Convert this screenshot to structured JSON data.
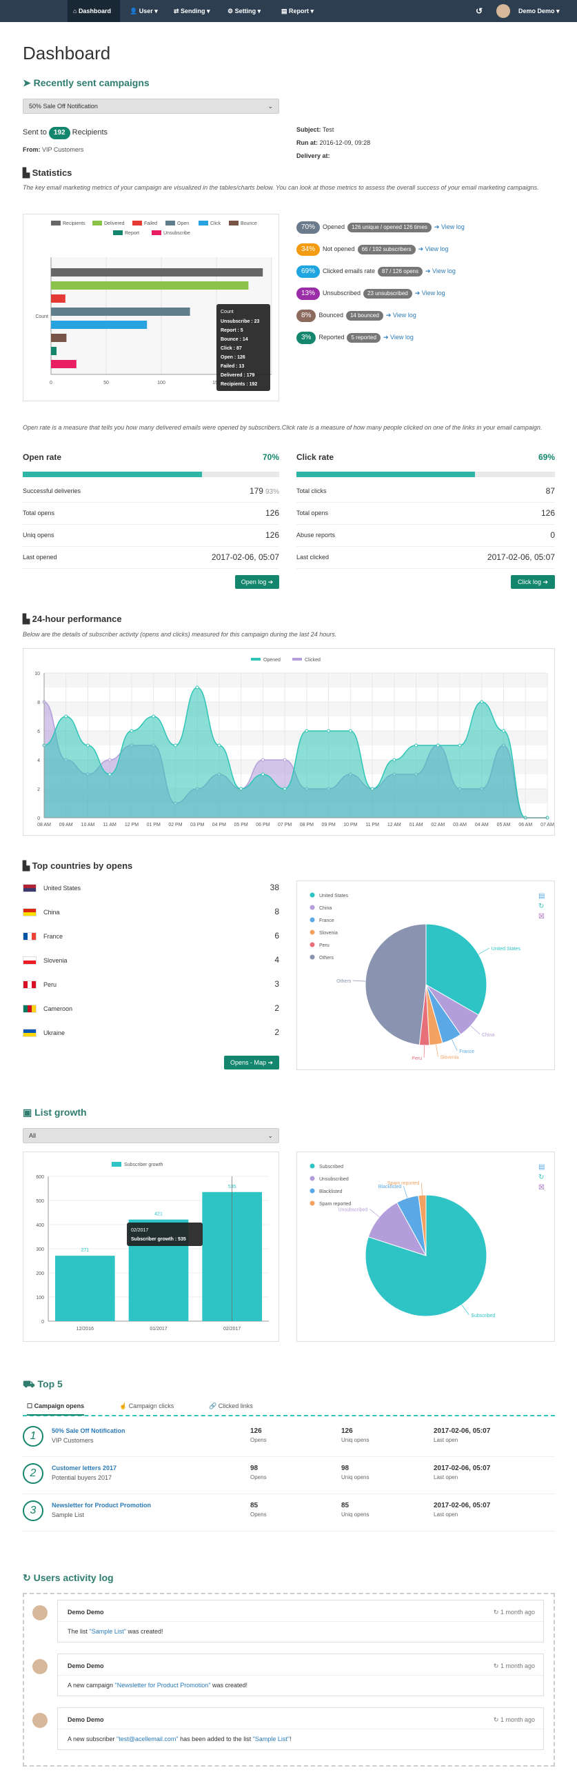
{
  "nav": {
    "items": [
      "Dashboard",
      "User",
      "Sending",
      "Setting",
      "Report"
    ],
    "user": "Demo Demo"
  },
  "page_title": "Dashboard",
  "recent": {
    "title": "Recently sent campaigns",
    "selected": "50% Sale Off Notification",
    "sent_to_prefix": "Sent to",
    "recipients_count": "192",
    "recipients_label": "Recipients",
    "from_label": "From:",
    "from_value": "VIP Customers",
    "subject_label": "Subject:",
    "subject_value": "Test",
    "run_at_label": "Run at:",
    "run_at_value": "2016-12-09, 09:28",
    "delivery_at_label": "Delivery at:"
  },
  "statistics": {
    "title": "Statistics",
    "desc": "The key email marketing metrics of your campaign are visualized in the tables/charts below. You can look at those metrics to assess the overall success of your email marketing campaigns."
  },
  "metrics": [
    {
      "pct": "70%",
      "label": "Opened",
      "badge": "126 unique / opened 126 times",
      "color": "#6b7b8c",
      "link": "View log"
    },
    {
      "pct": "34%",
      "label": "Not opened",
      "badge": "66 / 192 subscribers",
      "color": "#f39c12",
      "link": "View log"
    },
    {
      "pct": "69%",
      "label": "Clicked emails rate",
      "badge": "87 / 126 opens",
      "color": "#1fa6e0",
      "link": "View log"
    },
    {
      "pct": "13%",
      "label": "Unsubscribed",
      "badge": "23 unsubscribed",
      "color": "#9b2ea8",
      "link": "View log"
    },
    {
      "pct": "8%",
      "label": "Bounced",
      "badge": "14 bounced",
      "color": "#8d6a5e",
      "link": "View log"
    },
    {
      "pct": "3%",
      "label": "Reported",
      "badge": "5 reported",
      "color": "#14866d",
      "link": "View log"
    }
  ],
  "chart_data": [
    {
      "type": "bar",
      "orientation": "horizontal",
      "categories": [
        "Count"
      ],
      "series": [
        {
          "name": "Recipients",
          "value": 192,
          "color": "#666666"
        },
        {
          "name": "Delivered",
          "value": 179,
          "color": "#8bc34a"
        },
        {
          "name": "Failed",
          "value": 13,
          "color": "#e53935"
        },
        {
          "name": "Open",
          "value": 126,
          "color": "#607d8b"
        },
        {
          "name": "Click",
          "value": 87,
          "color": "#29a3e0"
        },
        {
          "name": "Bounce",
          "value": 14,
          "color": "#795548"
        },
        {
          "name": "Report",
          "value": 5,
          "color": "#14866d"
        },
        {
          "name": "Unsubscribe",
          "value": 23,
          "color": "#e91e63"
        }
      ],
      "xticks": [
        "0",
        "50",
        "100",
        "150"
      ],
      "tooltip": {
        "title": "Count",
        "lines": [
          "Unsubscribe : 23",
          "Report : 5",
          "Bounce : 14",
          "Click : 87",
          "Open : 126",
          "Failed : 13",
          "Delivered : 179",
          "Recipients : 192"
        ]
      }
    },
    {
      "type": "area",
      "title": "24-hour performance",
      "x": [
        "08 AM",
        "09 AM",
        "10 AM",
        "11 AM",
        "12 PM",
        "01 PM",
        "02 PM",
        "03 PM",
        "04 PM",
        "05 PM",
        "06 PM",
        "07 PM",
        "08 PM",
        "09 PM",
        "10 PM",
        "11 PM",
        "12 AM",
        "01 AM",
        "02 AM",
        "03 AM",
        "04 AM",
        "05 AM",
        "06 AM",
        "07 AM"
      ],
      "series": [
        {
          "name": "Opened",
          "values": [
            5,
            7,
            5,
            3,
            6,
            7,
            5,
            9,
            5,
            2,
            3,
            2,
            6,
            6,
            6,
            2,
            4,
            5,
            5,
            5,
            8,
            6,
            0,
            0
          ],
          "color": "#2ec4b6"
        },
        {
          "name": "Clicked",
          "values": [
            8,
            4,
            3,
            4,
            5,
            5,
            1,
            2,
            3,
            2,
            4,
            4,
            2,
            2,
            3,
            2,
            3,
            3,
            5,
            2,
            2,
            5,
            0,
            0
          ],
          "color": "#b39ddb"
        }
      ],
      "ylim": [
        0,
        10
      ],
      "yticks": [
        "0",
        "2",
        "4",
        "6",
        "8",
        "10"
      ]
    },
    {
      "type": "pie",
      "series": [
        {
          "name": "United States",
          "value": 38,
          "color": "#2ec4c6"
        },
        {
          "name": "China",
          "value": 8,
          "color": "#b39ddb"
        },
        {
          "name": "France",
          "value": 6,
          "color": "#5aa9e6"
        },
        {
          "name": "Slovenia",
          "value": 4,
          "color": "#f4a261"
        },
        {
          "name": "Peru",
          "value": 3,
          "color": "#e76f7a"
        },
        {
          "name": "Others",
          "value": 55,
          "color": "#8a94b0"
        }
      ]
    },
    {
      "type": "bar",
      "categories": [
        "12/2016",
        "01/2017",
        "02/2017"
      ],
      "series": [
        {
          "name": "Subscriber growth",
          "values": [
            271,
            421,
            535
          ],
          "color": "#2ec4c6"
        }
      ],
      "ylim": [
        0,
        600
      ],
      "yticks": [
        "0",
        "100",
        "200",
        "300",
        "400",
        "500",
        "600"
      ],
      "tooltip": {
        "title": "02/2017",
        "line": "Subscriber growth : 535"
      }
    },
    {
      "type": "pie",
      "series": [
        {
          "name": "Subscribed",
          "value": 80,
          "color": "#2ec4c6"
        },
        {
          "name": "Unsubscribed",
          "value": 12,
          "color": "#b39ddb"
        },
        {
          "name": "Blacklisted",
          "value": 6,
          "color": "#5aa9e6"
        },
        {
          "name": "Spam reported",
          "value": 2,
          "color": "#f4a261"
        }
      ]
    }
  ],
  "rates": {
    "desc": "Open rate is a measure that tells you how many delivered emails were opened by subscribers.Click rate is a measure of how many people clicked on one of the links in your email campaign.",
    "open": {
      "title": "Open rate",
      "pct": "70%",
      "fill": 0.7,
      "rows": [
        [
          "Successful deliveries",
          "179",
          "93%"
        ],
        [
          "Total opens",
          "126",
          ""
        ],
        [
          "Uniq opens",
          "126",
          ""
        ],
        [
          "Last opened",
          "2017-02-06, 05:07",
          ""
        ]
      ],
      "button": "Open log"
    },
    "click": {
      "title": "Click rate",
      "pct": "69%",
      "fill": 0.69,
      "rows": [
        [
          "Total clicks",
          "87",
          ""
        ],
        [
          "Total opens",
          "126",
          ""
        ],
        [
          "Abuse reports",
          "0",
          ""
        ],
        [
          "Last clicked",
          "2017-02-06, 05:07",
          ""
        ]
      ],
      "button": "Click log"
    }
  },
  "perf": {
    "title": "24-hour performance",
    "desc": "Below are the details of subscriber activity (opens and clicks) measured for this campaign during the last 24 hours."
  },
  "countries": {
    "title": "Top countries by opens",
    "items": [
      [
        "United States",
        "38"
      ],
      [
        "China",
        "8"
      ],
      [
        "France",
        "6"
      ],
      [
        "Slovenia",
        "4"
      ],
      [
        "Peru",
        "3"
      ],
      [
        "Cameroon",
        "2"
      ],
      [
        "Ukraine",
        "2"
      ]
    ],
    "button": "Opens - Map"
  },
  "growth": {
    "title": "List growth",
    "selected": "All"
  },
  "top5": {
    "title": "Top 5",
    "tabs": [
      "Campaign opens",
      "Campaign clicks",
      "Clicked links"
    ],
    "items": [
      {
        "n": "1",
        "name": "50% Sale Off Notification",
        "sub": "VIP Customers",
        "opens": "126",
        "uniq": "126",
        "last": "2017-02-06, 05:07"
      },
      {
        "n": "2",
        "name": "Customer letters 2017",
        "sub": "Potential buyers 2017",
        "opens": "98",
        "uniq": "98",
        "last": "2017-02-06, 05:07"
      },
      {
        "n": "3",
        "name": "Newsletter for Product Promotion",
        "sub": "Sample List",
        "opens": "85",
        "uniq": "85",
        "last": "2017-02-06, 05:07"
      }
    ],
    "opens_label": "Opens",
    "uniq_label": "Uniq opens",
    "last_label": "Last open"
  },
  "activity": {
    "title": "Users activity log",
    "items": [
      {
        "user": "Demo Demo",
        "time": "1 month ago",
        "pre": "The list ",
        "link": "\"Sample List\"",
        "post": " was created!",
        "link2": "",
        "post2": ""
      },
      {
        "user": "Demo Demo",
        "time": "1 month ago",
        "pre": "A new campaign ",
        "link": "\"Newsletter for Product Promotion\"",
        "post": " was created!",
        "link2": "",
        "post2": ""
      },
      {
        "user": "Demo Demo",
        "time": "1 month ago",
        "pre": "A new subscriber ",
        "link": "\"test@acellemail.com\"",
        "post": " has been added to the list ",
        "link2": "\"Sample List\"",
        "post2": "!"
      }
    ]
  }
}
